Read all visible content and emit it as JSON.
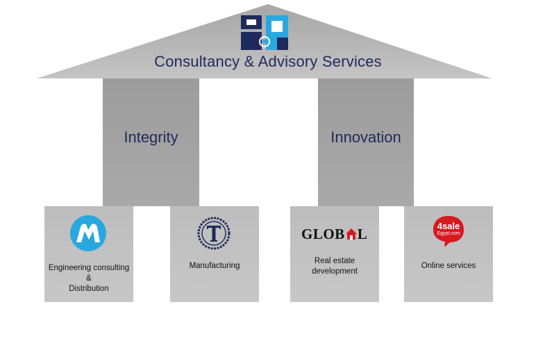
{
  "header": {
    "title": "Consultancy & Advisory Services",
    "logo_icon": "gq-company-logo-icon"
  },
  "pillars": [
    {
      "label": "Integrity"
    },
    {
      "label": "Innovation"
    }
  ],
  "companies": [
    {
      "label_lines": [
        "Engineering consulting",
        "&",
        "Distribution"
      ],
      "icon": "m-circle-logo-icon"
    },
    {
      "label_lines": [
        "Manufacturing"
      ],
      "icon": "t-ring-logo-icon"
    },
    {
      "label_lines": [
        "Real estate",
        "development"
      ],
      "icon": "global-house-logo-icon",
      "logo_text_left": "GLOB",
      "logo_text_right": "L"
    },
    {
      "label_lines": [
        "Online services"
      ],
      "icon": "4sale-egypt-logo-icon",
      "logo_text_top": "4sale",
      "logo_text_bottom": "Egypt.com"
    }
  ],
  "colors": {
    "title_text": "#1f2a5c",
    "roof_gray": "#b5b5b5",
    "pillar_gray": "#a3a3a3",
    "box_gray": "#c2c2c2",
    "logo_navy": "#1f2a5c",
    "logo_blue": "#29a8e0",
    "accent_red": "#d71920"
  }
}
